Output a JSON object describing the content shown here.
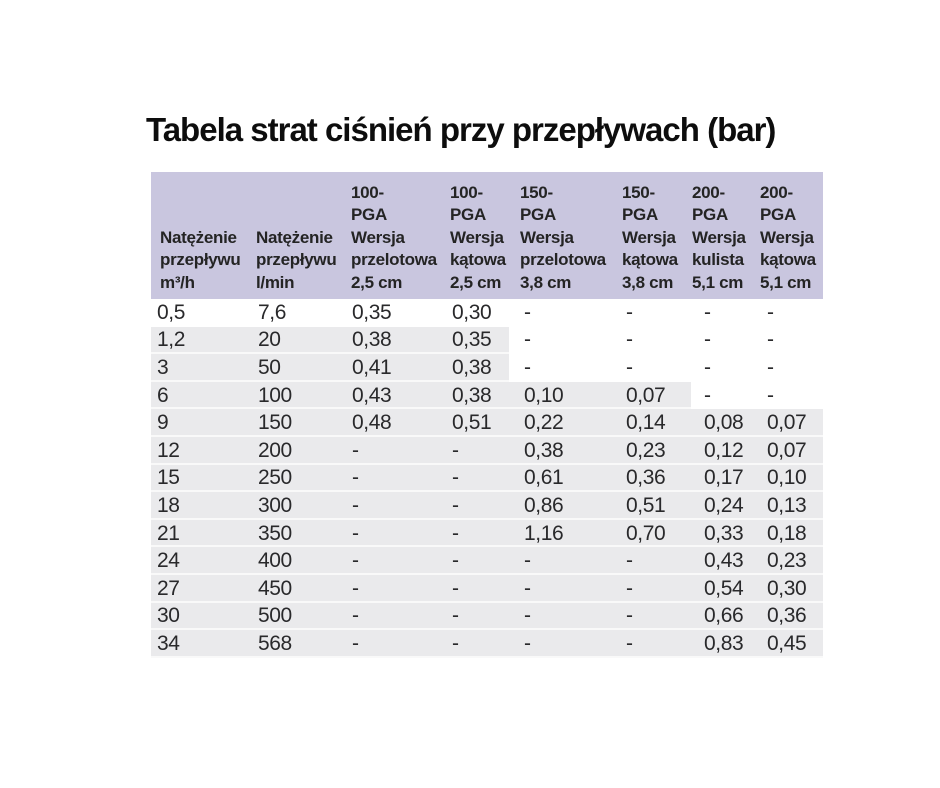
{
  "title": "Tabela strat ciśnień przy przepływach (bar)",
  "colors": {
    "header_bg": "#c9c6df",
    "row_shade": "#eaeaec",
    "text_dark": "#231f20"
  },
  "table": {
    "headers": [
      "Natężenie\nprzepływu\nm³/h",
      "Natężenie\nprzepływu\nl/min",
      "100-\nPGA\nWersja\nprzelotowa\n2,5 cm",
      "100-\nPGA\nWersja\nkątowa\n2,5 cm",
      "150-\nPGA\nWersja\nprzelotowa\n3,8 cm",
      "150-\nPGA\nWersja\nkątowa\n3,8 cm",
      "200-\nPGA\nWersja\nkulista\n5,1 cm",
      "200-\nPGA\nWersja\nkątowa\n5,1 cm"
    ],
    "rows": [
      [
        "0,5",
        "7,6",
        "0,35",
        "0,30",
        "-",
        "-",
        "-",
        "-"
      ],
      [
        "1,2",
        "20",
        "0,38",
        "0,35",
        "-",
        "-",
        "-",
        "-"
      ],
      [
        "3",
        "50",
        "0,41",
        "0,38",
        "-",
        "-",
        "-",
        "-"
      ],
      [
        "6",
        "100",
        "0,43",
        "0,38",
        "0,10",
        "0,07",
        "-",
        "-"
      ],
      [
        "9",
        "150",
        "0,48",
        "0,51",
        "0,22",
        "0,14",
        "0,08",
        "0,07"
      ],
      [
        "12",
        "200",
        "-",
        "-",
        "0,38",
        "0,23",
        "0,12",
        "0,07"
      ],
      [
        "15",
        "250",
        "-",
        "-",
        "0,61",
        "0,36",
        "0,17",
        "0,10"
      ],
      [
        "18",
        "300",
        "-",
        "-",
        "0,86",
        "0,51",
        "0,24",
        "0,13"
      ],
      [
        "21",
        "350",
        "-",
        "-",
        "1,16",
        "0,70",
        "0,33",
        "0,18"
      ],
      [
        "24",
        "400",
        "-",
        "-",
        "-",
        "-",
        "0,43",
        "0,23"
      ],
      [
        "27",
        "450",
        "-",
        "-",
        "-",
        "-",
        "0,54",
        "0,30"
      ],
      [
        "30",
        "500",
        "-",
        "-",
        "-",
        "-",
        "0,66",
        "0,36"
      ],
      [
        "34",
        "568",
        "-",
        "-",
        "-",
        "-",
        "0,83",
        "0,45"
      ]
    ],
    "row_shading": [
      "none",
      "cols4",
      "cols4",
      "cols6",
      "full",
      "full",
      "full",
      "full",
      "full",
      "full",
      "full",
      "full",
      "full"
    ]
  },
  "chart_data": {
    "type": "table",
    "title": "Tabela strat ciśnień przy przepływach (bar)",
    "columns": [
      "Natężenie przepływu m³/h",
      "Natężenie przepływu l/min",
      "100-PGA Wersja przelotowa 2,5 cm",
      "100-PGA Wersja kątowa 2,5 cm",
      "150-PGA Wersja przelotowa 3,8 cm",
      "150-PGA Wersja kątowa 3,8 cm",
      "200-PGA Wersja kulista 5,1 cm",
      "200-PGA Wersja kątowa 5,1 cm"
    ],
    "rows": [
      [
        "0,5",
        "7,6",
        "0,35",
        "0,30",
        "-",
        "-",
        "-",
        "-"
      ],
      [
        "1,2",
        "20",
        "0,38",
        "0,35",
        "-",
        "-",
        "-",
        "-"
      ],
      [
        "3",
        "50",
        "0,41",
        "0,38",
        "-",
        "-",
        "-",
        "-"
      ],
      [
        "6",
        "100",
        "0,43",
        "0,38",
        "0,10",
        "0,07",
        "-",
        "-"
      ],
      [
        "9",
        "150",
        "0,48",
        "0,51",
        "0,22",
        "0,14",
        "0,08",
        "0,07"
      ],
      [
        "12",
        "200",
        "-",
        "-",
        "0,38",
        "0,23",
        "0,12",
        "0,07"
      ],
      [
        "15",
        "250",
        "-",
        "-",
        "0,61",
        "0,36",
        "0,17",
        "0,10"
      ],
      [
        "18",
        "300",
        "-",
        "-",
        "0,86",
        "0,51",
        "0,24",
        "0,13"
      ],
      [
        "21",
        "350",
        "-",
        "-",
        "1,16",
        "0,70",
        "0,33",
        "0,18"
      ],
      [
        "24",
        "400",
        "-",
        "-",
        "-",
        "-",
        "0,43",
        "0,23"
      ],
      [
        "27",
        "450",
        "-",
        "-",
        "-",
        "-",
        "0,54",
        "0,30"
      ],
      [
        "30",
        "500",
        "-",
        "-",
        "-",
        "-",
        "0,66",
        "0,36"
      ],
      [
        "34",
        "568",
        "-",
        "-",
        "-",
        "-",
        "0,83",
        "0,45"
      ]
    ]
  }
}
